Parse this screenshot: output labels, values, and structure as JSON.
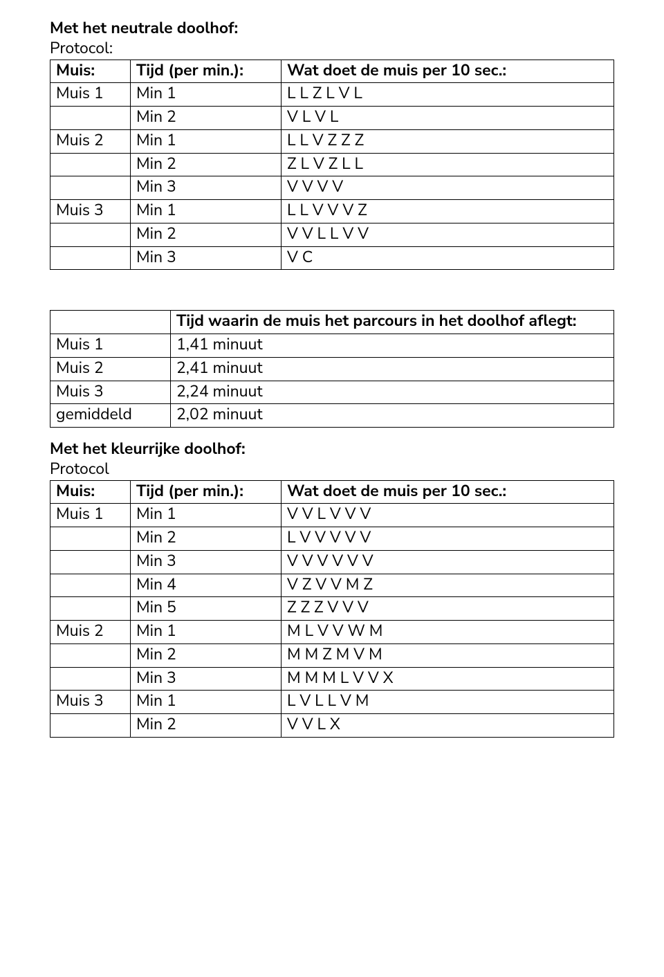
{
  "section1": {
    "title": "Met het neutrale doolhof:",
    "subtitle": "Protocol:",
    "table": {
      "head": {
        "muis": "Muis:",
        "tijd": "Tijd (per min.):",
        "actie": "Wat doet de muis per 10 sec.:"
      },
      "rows": [
        {
          "muis": "Muis 1",
          "tijd": "Min 1",
          "actie": "L L Z L V L"
        },
        {
          "muis": "",
          "tijd": "Min 2",
          "actie": "V L V L"
        },
        {
          "muis": "Muis 2",
          "tijd": "Min 1",
          "actie": "L L V Z Z Z"
        },
        {
          "muis": "",
          "tijd": "Min 2",
          "actie": "Z L V Z L L"
        },
        {
          "muis": "",
          "tijd": "Min 3",
          "actie": "V V V V"
        },
        {
          "muis": "Muis 3",
          "tijd": "Min 1",
          "actie": "L L V V V Z"
        },
        {
          "muis": "",
          "tijd": "Min 2",
          "actie": "V V L L V  V"
        },
        {
          "muis": "",
          "tijd": "Min 3",
          "actie": "V C"
        }
      ]
    }
  },
  "section2": {
    "table": {
      "head": {
        "blank": "",
        "title": "Tijd waarin de muis het parcours in het doolhof aflegt:"
      },
      "rows": [
        {
          "label": "Muis 1",
          "value": "1,41 minuut"
        },
        {
          "label": "Muis 2",
          "value": "2,41 minuut"
        },
        {
          "label": "Muis 3",
          "value": "2,24 minuut"
        },
        {
          "label": "gemiddeld",
          "value": "2,02 minuut"
        }
      ]
    }
  },
  "section3": {
    "title": "Met het kleurrijke doolhof:",
    "subtitle": "Protocol",
    "table": {
      "head": {
        "muis": "Muis:",
        "tijd": "Tijd (per min.):",
        "actie": "Wat doet de muis per 10 sec.:"
      },
      "rows": [
        {
          "muis": "Muis 1",
          "tijd": "Min 1",
          "actie": "V V L V V V"
        },
        {
          "muis": "",
          "tijd": "Min 2",
          "actie": "L V V V V V"
        },
        {
          "muis": "",
          "tijd": "Min 3",
          "actie": "V V V V V V"
        },
        {
          "muis": "",
          "tijd": "Min 4",
          "actie": "V Z V V M Z"
        },
        {
          "muis": "",
          "tijd": "Min 5",
          "actie": "Z Z Z V V V"
        },
        {
          "muis": "Muis 2",
          "tijd": "Min 1",
          "actie": "M L V V W M"
        },
        {
          "muis": "",
          "tijd": "Min 2",
          "actie": "M M Z M V M"
        },
        {
          "muis": "",
          "tijd": "Min 3",
          "actie": "M M M L V V X"
        },
        {
          "muis": "Muis 3",
          "tijd": "Min 1",
          "actie": "L V L L V M"
        },
        {
          "muis": "",
          "tijd": "Min 2",
          "actie": "V V L X"
        }
      ]
    }
  }
}
